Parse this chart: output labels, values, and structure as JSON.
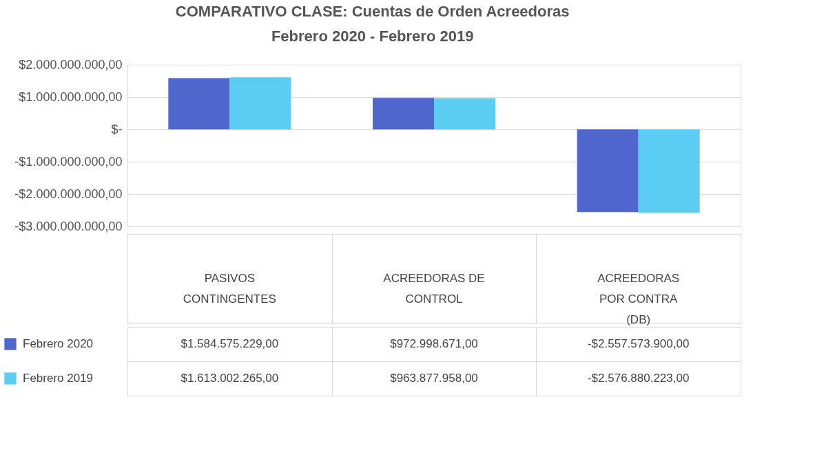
{
  "chart_data": {
    "type": "bar",
    "title": "COMPARATIVO CLASE: Cuentas de Orden Acreedoras",
    "subtitle": "Febrero 2020  - Febrero 2019",
    "categories": [
      "PASIVOS\nCONTINGENTES",
      "ACREEDORAS DE\nCONTROL",
      "ACREEDORAS\nPOR CONTRA\n(DB)"
    ],
    "series": [
      {
        "name": "Febrero 2020",
        "color": "#4f66cc",
        "values": [
          1584575229.0,
          972998671.0,
          -2557573900.0
        ],
        "value_labels": [
          "$1.584.575.229,00",
          "$972.998.671,00",
          "-$2.557.573.900,00"
        ]
      },
      {
        "name": "Febrero 2019",
        "color": "#5bcdf2",
        "values": [
          1613002265.0,
          963877958.0,
          -2576880223.0
        ],
        "value_labels": [
          "$1.613.002.265,00",
          "$963.877.958,00",
          "-$2.576.880.223,00"
        ]
      }
    ],
    "ylim": [
      -3000000000,
      2000000000
    ],
    "yticks": [
      {
        "value": 2000000000,
        "label": "$2.000.000.000,00"
      },
      {
        "value": 1000000000,
        "label": "$1.000.000.000,00"
      },
      {
        "value": 0,
        "label": "$-"
      },
      {
        "value": -1000000000,
        "label": "-$1.000.000.000,00"
      },
      {
        "value": -2000000000,
        "label": "-$2.000.000.000,00"
      },
      {
        "value": -3000000000,
        "label": "-$3.000.000.000,00"
      }
    ],
    "grid": "y",
    "legend": "bottom"
  }
}
